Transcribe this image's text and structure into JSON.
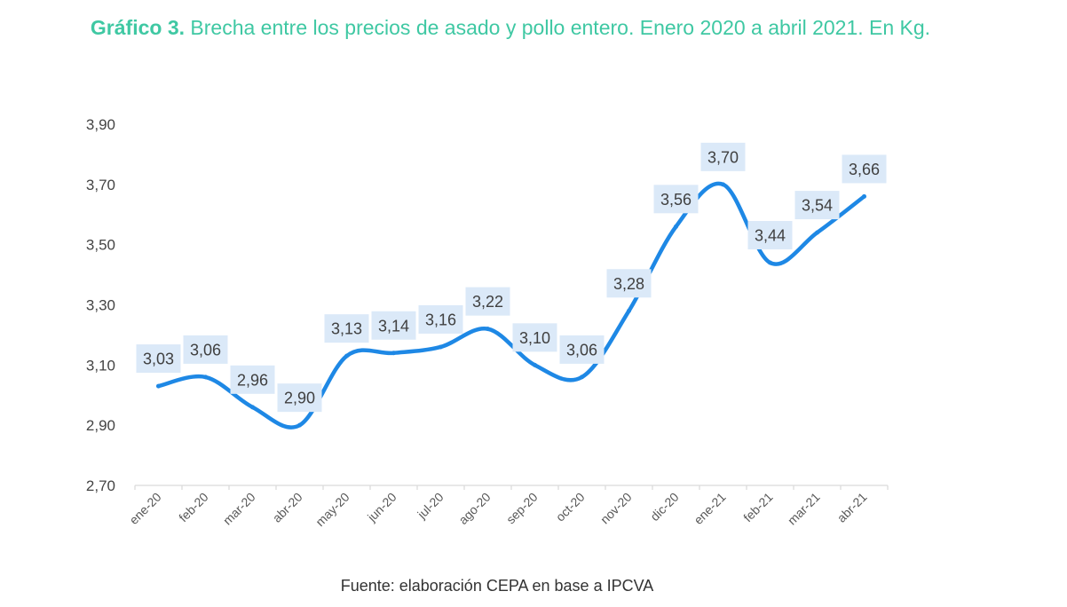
{
  "title_bold": "Gráfico 3.",
  "title_rest": " Brecha entre los precios de asado y pollo entero. Enero 2020 a abril 2021. En Kg.",
  "source": "Fuente: elaboración CEPA en base a IPCVA",
  "chart_data": {
    "type": "line",
    "categories": [
      "ene-20",
      "feb-20",
      "mar-20",
      "abr-20",
      "may-20",
      "jun-20",
      "jul-20",
      "ago-20",
      "sep-20",
      "oct-20",
      "nov-20",
      "dic-20",
      "ene-21",
      "feb-21",
      "mar-21",
      "abr-21"
    ],
    "series": [
      {
        "values": [
          3.03,
          3.06,
          2.96,
          2.9,
          3.13,
          3.14,
          3.16,
          3.22,
          3.1,
          3.06,
          3.28,
          3.56,
          3.7,
          3.44,
          3.54,
          3.66
        ],
        "labels": [
          "3,03",
          "3,06",
          "2,96",
          "2,90",
          "3,13",
          "3,14",
          "3,16",
          "3,22",
          "3,10",
          "3,06",
          "3,28",
          "3,56",
          "3,70",
          "3,44",
          "3,54",
          "3,66"
        ]
      }
    ],
    "ylim": [
      2.7,
      3.9
    ],
    "yticks": [
      "3,90",
      "3,70",
      "3,50",
      "3,30",
      "3,10",
      "2,90",
      "2,70"
    ],
    "ytick_values": [
      3.9,
      3.7,
      3.5,
      3.3,
      3.1,
      2.9,
      2.7
    ],
    "smooth": true,
    "grid": false,
    "colors": {
      "line": "#1e88e5",
      "label_bg": "#dbe9f8",
      "title": "#3fc8a3",
      "axis": "#d9d9d9"
    }
  }
}
